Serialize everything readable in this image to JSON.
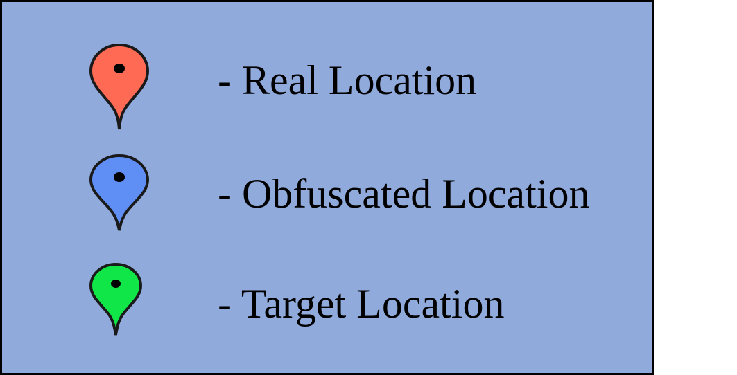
{
  "legend": {
    "background_color": "#90aadc",
    "border_color": "#000000",
    "items": [
      {
        "icon": "map-pin-icon",
        "color": "#ff6a55",
        "label": "- Real Location"
      },
      {
        "icon": "map-pin-icon",
        "color": "#5f8ef5",
        "label": "- Obfuscated Location"
      },
      {
        "icon": "map-pin-icon",
        "color": "#11e649",
        "label": "- Target Location"
      }
    ]
  }
}
